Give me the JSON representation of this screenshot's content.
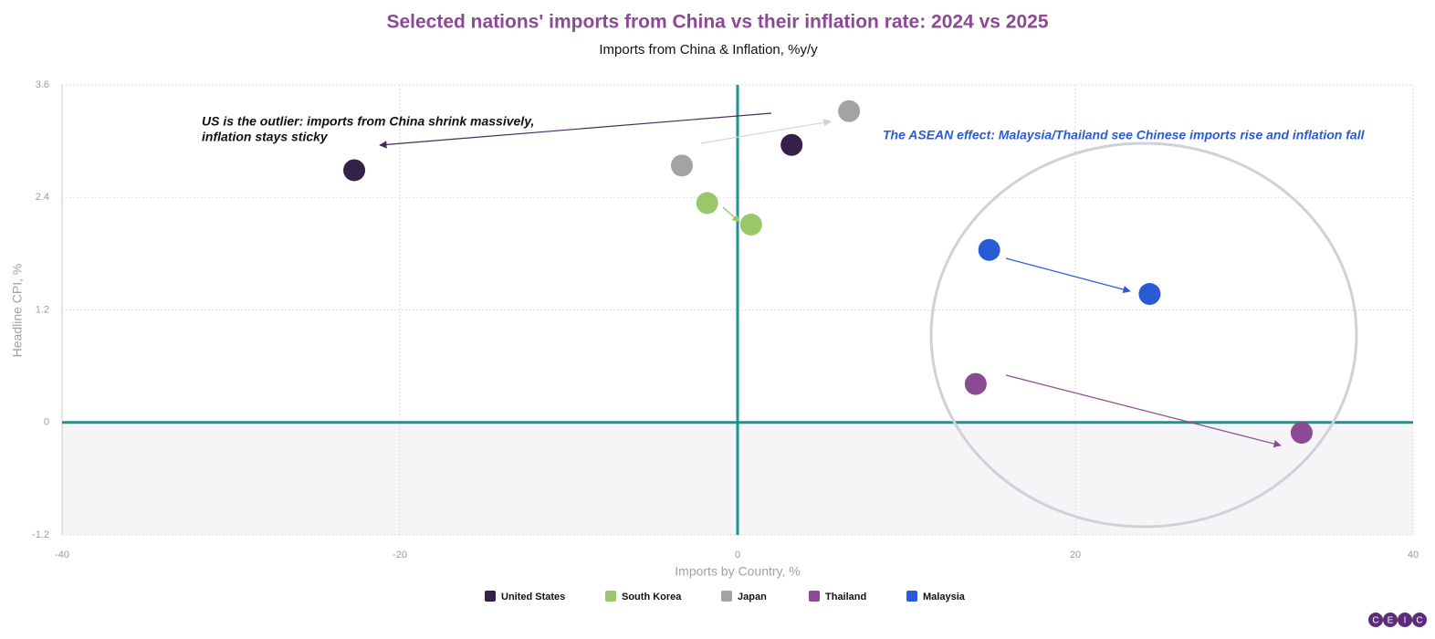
{
  "chart_data": {
    "type": "scatter",
    "title": "Selected nations' imports from China vs their inflation rate: 2024 vs 2025",
    "subtitle": "Imports from China & Inflation, %y/y",
    "x_label": "Imports by Country, %",
    "y_label": "Headline CPI, %",
    "xlim": [
      -40,
      40
    ],
    "ylim": [
      -1.2,
      3.6
    ],
    "xticks": [
      -40,
      -20,
      0,
      20,
      40
    ],
    "yticks": [
      -1.2,
      0,
      1.2,
      2.4,
      3.6
    ],
    "grid": true,
    "series": [
      {
        "name": "United States",
        "color": "#35204a",
        "x": [
          -22.7,
          3.2
        ],
        "values": [
          2.69,
          2.96
        ]
      },
      {
        "name": "South Korea",
        "color": "#9bc76a",
        "x": [
          -1.8,
          0.8
        ],
        "values": [
          2.34,
          2.11
        ]
      },
      {
        "name": "Japan",
        "color": "#a3a3a3",
        "x": [
          -3.3,
          6.6
        ],
        "values": [
          2.74,
          3.32
        ]
      },
      {
        "name": "Thailand",
        "color": "#8b4a93",
        "x": [
          14.1,
          33.4
        ],
        "values": [
          0.41,
          -0.11
        ]
      },
      {
        "name": "Malaysia",
        "color": "#2a5bd7",
        "x": [
          14.9,
          24.4
        ],
        "values": [
          1.84,
          1.37
        ]
      }
    ],
    "annotations": [
      [
        "US is the outlier: imports from China shrink massively,",
        "inflation stays sticky"
      ],
      [
        "The ASEAN effect: Malaysia/Thailand see Chinese imports rise and inflation fall"
      ]
    ],
    "logo": [
      "C",
      "E",
      "I",
      "C"
    ]
  }
}
